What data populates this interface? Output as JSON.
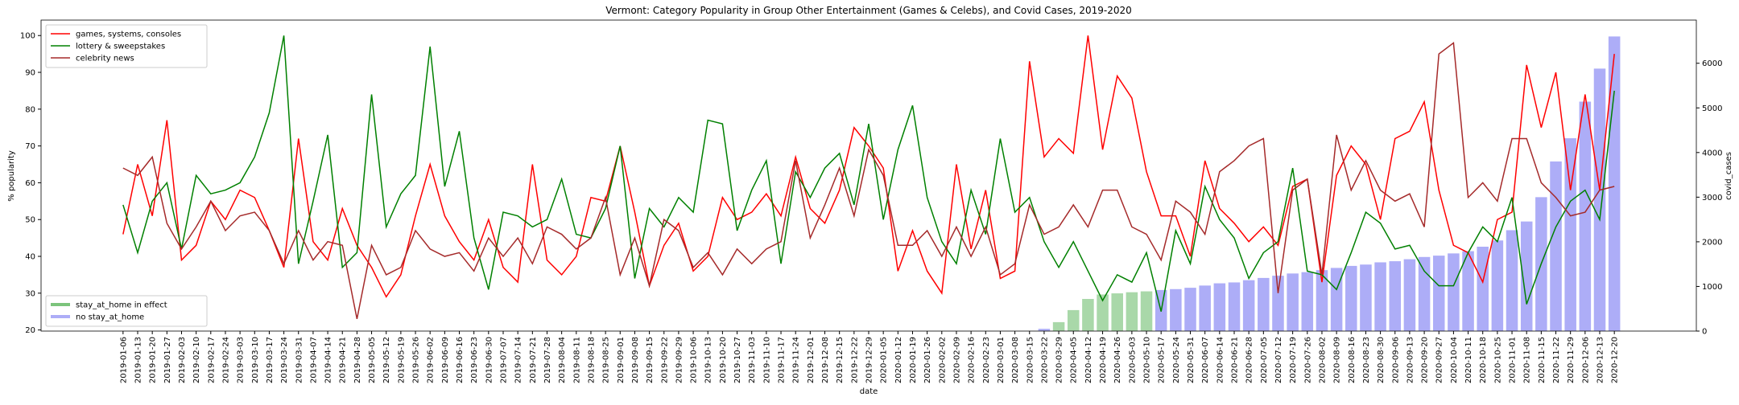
{
  "chart_data": {
    "type": "line",
    "title": "Vermont: Category Popularity in Group Other Entertainment (Games & Celebs), and Covid Cases, 2019-2020",
    "x_label": "date",
    "y_label": "% popularity",
    "y2_label": "covid_cases",
    "categories": [
      "2019-01-06",
      "2019-01-13",
      "2019-01-20",
      "2019-01-27",
      "2019-02-03",
      "2019-02-10",
      "2019-02-17",
      "2019-02-24",
      "2019-03-03",
      "2019-03-10",
      "2019-03-17",
      "2019-03-24",
      "2019-03-31",
      "2019-04-07",
      "2019-04-14",
      "2019-04-21",
      "2019-04-28",
      "2019-05-05",
      "2019-05-12",
      "2019-05-19",
      "2019-05-26",
      "2019-06-02",
      "2019-06-09",
      "2019-06-16",
      "2019-06-23",
      "2019-06-30",
      "2019-07-07",
      "2019-07-14",
      "2019-07-21",
      "2019-07-28",
      "2019-08-04",
      "2019-08-11",
      "2019-08-18",
      "2019-08-25",
      "2019-09-01",
      "2019-09-08",
      "2019-09-15",
      "2019-09-22",
      "2019-09-29",
      "2019-10-06",
      "2019-10-13",
      "2019-10-20",
      "2019-10-27",
      "2019-11-03",
      "2019-11-10",
      "2019-11-17",
      "2019-11-24",
      "2019-12-01",
      "2019-12-08",
      "2019-12-15",
      "2019-12-22",
      "2019-12-29",
      "2020-01-05",
      "2020-01-12",
      "2020-01-19",
      "2020-01-26",
      "2020-02-02",
      "2020-02-09",
      "2020-02-16",
      "2020-02-23",
      "2020-03-01",
      "2020-03-08",
      "2020-03-15",
      "2020-03-22",
      "2020-03-29",
      "2020-04-05",
      "2020-04-12",
      "2020-04-19",
      "2020-04-26",
      "2020-05-03",
      "2020-05-10",
      "2020-05-17",
      "2020-05-24",
      "2020-05-31",
      "2020-06-07",
      "2020-06-14",
      "2020-06-21",
      "2020-06-28",
      "2020-07-05",
      "2020-07-12",
      "2020-07-19",
      "2020-07-26",
      "2020-08-02",
      "2020-08-09",
      "2020-08-16",
      "2020-08-23",
      "2020-08-30",
      "2020-09-06",
      "2020-09-13",
      "2020-09-20",
      "2020-09-27",
      "2020-10-04",
      "2020-10-11",
      "2020-10-18",
      "2020-10-25",
      "2020-11-01",
      "2020-11-08",
      "2020-11-15",
      "2020-11-22",
      "2020-11-29",
      "2020-12-06",
      "2020-12-13",
      "2020-12-20"
    ],
    "ylim": [
      19.7,
      104.2
    ],
    "yticks": [
      20,
      30,
      40,
      50,
      60,
      70,
      80,
      90,
      100
    ],
    "y2lim": [
      0,
      6967
    ],
    "y2ticks": [
      0,
      1000,
      2000,
      3000,
      4000,
      5000,
      6000
    ],
    "series": [
      {
        "name": "games, systems, consoles",
        "color": "red",
        "legend": "upper left",
        "values": [
          46,
          65,
          51,
          77,
          39,
          43,
          55,
          50,
          58,
          56,
          47,
          37,
          72,
          44,
          39,
          53,
          43,
          37,
          29,
          35,
          51,
          65,
          51,
          44,
          39,
          50,
          37,
          33,
          65,
          39,
          35,
          40,
          56,
          55,
          70,
          52,
          32,
          43,
          49,
          36,
          40,
          56,
          50,
          52,
          57,
          51,
          67,
          53,
          49,
          58,
          75,
          70,
          64,
          36,
          47,
          36,
          30,
          65,
          42,
          58,
          34,
          36,
          93,
          67,
          72,
          68,
          100,
          69,
          89,
          83,
          63,
          51,
          51,
          40,
          66,
          53,
          49,
          44,
          48,
          43,
          59,
          61,
          33,
          62,
          70,
          65,
          50,
          72,
          74,
          82,
          58,
          43,
          41,
          33,
          50,
          52,
          92,
          75,
          90,
          58,
          84,
          58,
          95
        ]
      },
      {
        "name": "lottery & sweepstakes",
        "color": "green",
        "legend": "upper left",
        "values": [
          54,
          41,
          55,
          60,
          42,
          62,
          57,
          58,
          60,
          67,
          79,
          100,
          38,
          55,
          73,
          37,
          41,
          84,
          48,
          57,
          62,
          97,
          59,
          74,
          45,
          31,
          52,
          51,
          48,
          50,
          61,
          46,
          45,
          53,
          70,
          34,
          53,
          48,
          56,
          52,
          77,
          76,
          47,
          58,
          66,
          38,
          63,
          56,
          64,
          68,
          54,
          76,
          50,
          69,
          81,
          56,
          44,
          38,
          58,
          46,
          72,
          52,
          56,
          44,
          37,
          44,
          36,
          28,
          35,
          33,
          41,
          25,
          47,
          38,
          59,
          50,
          45,
          34,
          41,
          44,
          64,
          36,
          35,
          31,
          41,
          52,
          49,
          42,
          43,
          36,
          32,
          32,
          41,
          48,
          44,
          56,
          27,
          38,
          48,
          55,
          58,
          50,
          85
        ]
      },
      {
        "name": "celebrity news",
        "color": "#a52a2a",
        "legend": "upper left",
        "values": [
          64,
          62,
          67,
          49,
          42,
          48,
          55,
          47,
          51,
          52,
          47,
          38,
          47,
          39,
          44,
          43,
          23,
          43,
          35,
          37,
          47,
          42,
          40,
          41,
          36,
          45,
          40,
          45,
          38,
          48,
          46,
          42,
          45,
          56,
          35,
          45,
          32,
          50,
          47,
          37,
          41,
          35,
          42,
          38,
          42,
          44,
          66,
          45,
          54,
          64,
          51,
          69,
          62,
          43,
          43,
          47,
          40,
          48,
          40,
          48,
          35,
          38,
          54,
          46,
          48,
          54,
          48,
          58,
          58,
          48,
          46,
          39,
          55,
          52,
          46,
          63,
          66,
          70,
          72,
          30,
          58,
          61,
          35,
          73,
          58,
          66,
          58,
          55,
          57,
          48,
          95,
          98,
          56,
          60,
          55,
          72,
          72,
          60,
          56,
          51,
          52,
          58,
          59
        ]
      },
      {
        "name": "stay_at_home in effect",
        "type": "bar",
        "axis": "y2",
        "color": "#a9d8a9",
        "legend": "lower left",
        "values": [
          null,
          null,
          null,
          null,
          null,
          null,
          null,
          null,
          null,
          null,
          null,
          null,
          null,
          null,
          null,
          null,
          null,
          null,
          null,
          null,
          null,
          null,
          null,
          null,
          null,
          null,
          null,
          null,
          null,
          null,
          null,
          null,
          null,
          null,
          null,
          null,
          null,
          null,
          null,
          null,
          null,
          null,
          null,
          null,
          null,
          null,
          null,
          null,
          null,
          null,
          null,
          null,
          null,
          null,
          null,
          null,
          null,
          null,
          null,
          null,
          null,
          null,
          null,
          null,
          200,
          470,
          720,
          820,
          845,
          870,
          890,
          null,
          null,
          null,
          null,
          null,
          null,
          null,
          null,
          null,
          null,
          null,
          null,
          null,
          null,
          null,
          null,
          null,
          null,
          null,
          null,
          null,
          null,
          null,
          null,
          null,
          null,
          null,
          null,
          null,
          null,
          null,
          null
        ]
      },
      {
        "name": "no stay_at_home",
        "type": "bar",
        "axis": "y2",
        "color": "#adadf7",
        "legend": "lower left",
        "values": [
          null,
          null,
          null,
          null,
          null,
          null,
          null,
          null,
          null,
          null,
          null,
          null,
          null,
          null,
          null,
          null,
          null,
          null,
          null,
          null,
          null,
          null,
          null,
          null,
          null,
          null,
          null,
          null,
          null,
          null,
          null,
          null,
          null,
          null,
          null,
          null,
          null,
          null,
          null,
          null,
          null,
          null,
          null,
          null,
          null,
          null,
          null,
          null,
          null,
          null,
          null,
          null,
          null,
          null,
          null,
          null,
          null,
          null,
          null,
          null,
          null,
          null,
          null,
          50,
          null,
          null,
          null,
          null,
          null,
          null,
          null,
          920,
          940,
          970,
          1020,
          1070,
          1090,
          1140,
          1190,
          1240,
          1290,
          1320,
          1365,
          1415,
          1460,
          1490,
          1540,
          1565,
          1610,
          1660,
          1690,
          1740,
          1790,
          1890,
          2030,
          2260,
          2455,
          3000,
          3800,
          4320,
          5140,
          5880,
          6600
        ]
      }
    ]
  }
}
